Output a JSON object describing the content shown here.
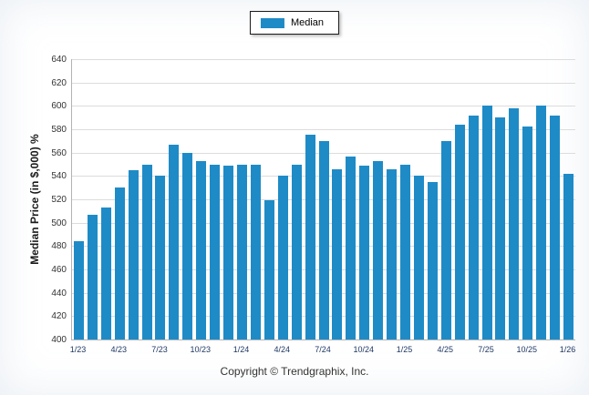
{
  "legend": {
    "label": "Median"
  },
  "footer": "Copyright © Trendgraphix, Inc.",
  "colors": {
    "bar": "#1e8bc7",
    "grid": "#dcdcdc",
    "x_tick_text": "#1f3864",
    "y_tick_text": "#333333"
  },
  "chart_data": {
    "type": "bar",
    "title": "",
    "ylabel": "Median Price (in $,000) %",
    "xlabel": "",
    "ylim": [
      400,
      640
    ],
    "ytick_step": 20,
    "grid": true,
    "legend_position": "top",
    "legend_entries": [
      "Median"
    ],
    "xtick_labels": [
      "1/23",
      "4/23",
      "7/23",
      "10/23",
      "1/24",
      "4/24",
      "7/24",
      "10/24",
      "1/25",
      "4/25",
      "7/25",
      "10/25",
      "1/26"
    ],
    "xtick_every": 3,
    "values": [
      484,
      507,
      513,
      530,
      545,
      550,
      540,
      567,
      560,
      553,
      550,
      549,
      550,
      550,
      519,
      540,
      550,
      575,
      570,
      546,
      557,
      549,
      553,
      546,
      550,
      540,
      535,
      570,
      584,
      592,
      600,
      590,
      598,
      582,
      600,
      592,
      542
    ]
  }
}
